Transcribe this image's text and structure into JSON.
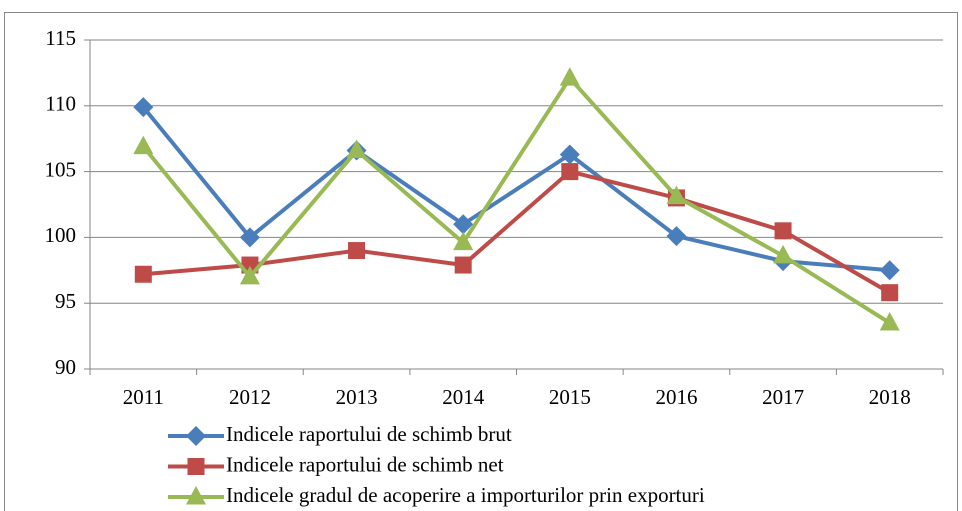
{
  "chart_data": {
    "type": "line",
    "categories": [
      "2011",
      "2012",
      "2013",
      "2014",
      "2015",
      "2016",
      "2017",
      "2018"
    ],
    "series": [
      {
        "name": "Indicele raportului de schimb brut",
        "color": "#4a7ebb",
        "marker": "diamond",
        "values": [
          109.9,
          100.0,
          106.6,
          101.0,
          106.3,
          100.1,
          98.2,
          97.5
        ]
      },
      {
        "name": "Indicele raportului de schimb net",
        "color": "#be4b48",
        "marker": "square",
        "values": [
          97.2,
          97.9,
          99.0,
          97.9,
          105.0,
          103.0,
          100.5,
          95.8
        ]
      },
      {
        "name": "Indicele gradul de acoperire a importurilor prin exporturi",
        "color": "#98b954",
        "marker": "triangle",
        "values": [
          106.9,
          97.0,
          106.6,
          99.6,
          112.1,
          103.1,
          98.6,
          93.5
        ]
      }
    ],
    "ylim": [
      90,
      115
    ],
    "yticks": [
      90,
      95,
      100,
      105,
      110,
      115
    ],
    "grid": true,
    "legend": "bottom"
  }
}
